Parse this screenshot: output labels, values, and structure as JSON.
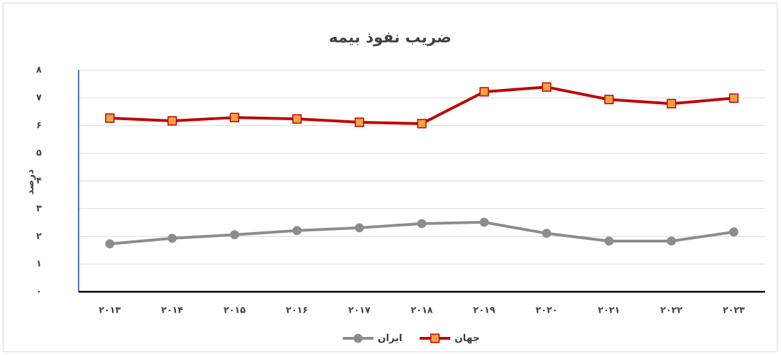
{
  "chart_data": {
    "type": "line",
    "title": "ضریب نفوذ بیمه",
    "y_label": "درصد",
    "categories": [
      "۲۰۱۳",
      "۲۰۱۴",
      "۲۰۱۵",
      "۲۰۱۶",
      "۲۰۱۷",
      "۲۰۱۸",
      "۲۰۱۹",
      "۲۰۲۰",
      "۲۰۲۱",
      "۲۰۲۲",
      "۲۰۲۳"
    ],
    "series": [
      {
        "name": "جهان",
        "color": "#c00000",
        "marker": "square",
        "marker_color": "#f4a142",
        "values": [
          6.27,
          6.17,
          6.29,
          6.24,
          6.12,
          6.07,
          7.22,
          7.39,
          6.94,
          6.79,
          6.99
        ]
      },
      {
        "name": "ایران",
        "color": "#8c8c8c",
        "marker": "circle",
        "marker_color": "#8c8c8c",
        "values": [
          1.73,
          1.93,
          2.06,
          2.21,
          2.31,
          2.46,
          2.51,
          2.11,
          1.83,
          1.83,
          2.16
        ]
      }
    ],
    "ylim": [
      0,
      8
    ],
    "yticks": [
      {
        "value": 0,
        "label": "۰"
      },
      {
        "value": 1,
        "label": "۱"
      },
      {
        "value": 2,
        "label": "۲"
      },
      {
        "value": 3,
        "label": "۳"
      },
      {
        "value": 4,
        "label": "۴"
      },
      {
        "value": 5,
        "label": "۵"
      },
      {
        "value": 6,
        "label": "۶"
      },
      {
        "value": 7,
        "label": "۷"
      },
      {
        "value": 8,
        "label": "۸"
      }
    ],
    "grid": true,
    "legend": "bottom"
  }
}
